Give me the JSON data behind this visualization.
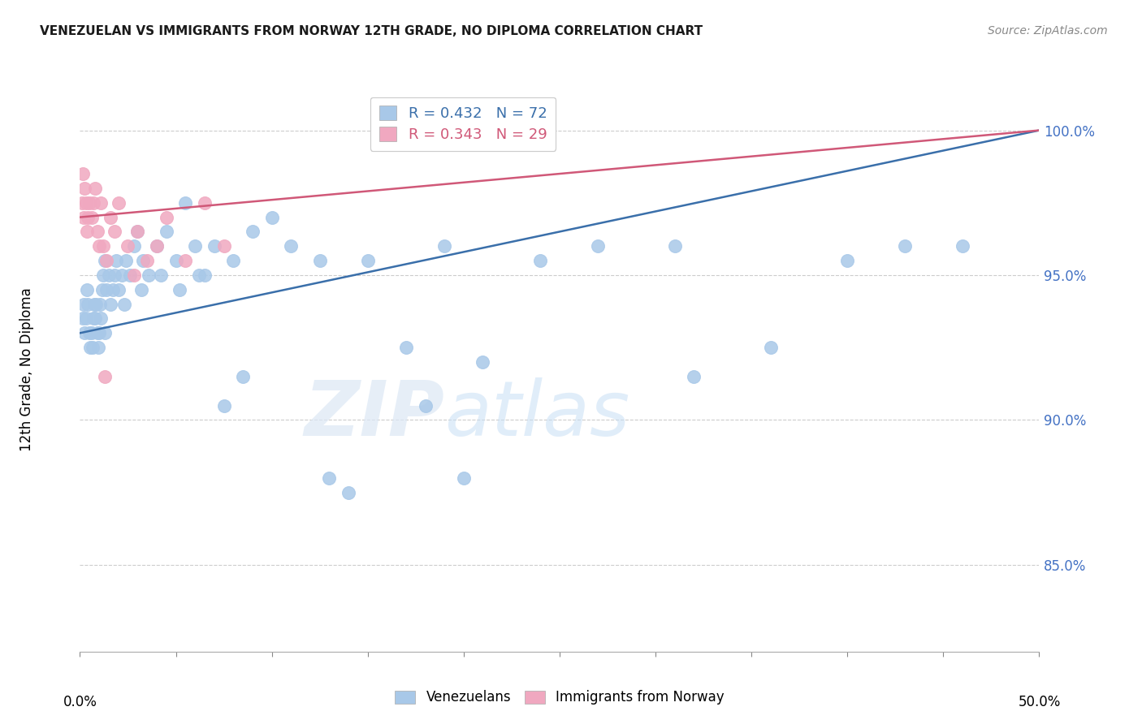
{
  "title": "VENEZUELAN VS IMMIGRANTS FROM NORWAY 12TH GRADE, NO DIPLOMA CORRELATION CHART",
  "source": "Source: ZipAtlas.com",
  "ylabel": "12th Grade, No Diploma",
  "watermark_zip": "ZIP",
  "watermark_atlas": "atlas",
  "blue_color": "#a8c8e8",
  "pink_color": "#f0a8c0",
  "blue_line_color": "#3a6faa",
  "pink_line_color": "#d05878",
  "xmin": 0.0,
  "xmax": 50.0,
  "ymin": 82.0,
  "ymax": 101.5,
  "yticks": [
    85.0,
    90.0,
    95.0,
    100.0
  ],
  "blue_trend_y0": 93.0,
  "blue_trend_y1": 100.0,
  "pink_trend_y0": 97.0,
  "pink_trend_y1": 100.0,
  "venezuelan_x": [
    0.15,
    0.2,
    0.25,
    0.3,
    0.35,
    0.4,
    0.5,
    0.55,
    0.6,
    0.65,
    0.7,
    0.75,
    0.8,
    0.85,
    0.9,
    0.95,
    1.0,
    1.05,
    1.1,
    1.15,
    1.2,
    1.3,
    1.4,
    1.5,
    1.6,
    1.7,
    1.8,
    1.9,
    2.0,
    2.2,
    2.4,
    2.6,
    2.8,
    3.0,
    3.3,
    3.6,
    4.0,
    4.5,
    5.0,
    5.5,
    6.0,
    6.5,
    7.0,
    8.0,
    9.0,
    10.0,
    11.0,
    12.5,
    14.0,
    15.0,
    17.0,
    19.0,
    21.0,
    24.0,
    27.0,
    31.0,
    36.0,
    40.0,
    43.0,
    46.0,
    32.0,
    20.0,
    18.0,
    13.0,
    8.5,
    7.5,
    6.2,
    5.2,
    4.2,
    3.2,
    2.3,
    1.3
  ],
  "venezuelan_y": [
    93.5,
    94.0,
    93.0,
    93.5,
    94.5,
    94.0,
    93.0,
    92.5,
    93.0,
    92.5,
    93.5,
    94.0,
    93.5,
    94.0,
    93.0,
    92.5,
    93.0,
    94.0,
    93.5,
    94.5,
    95.0,
    95.5,
    94.5,
    95.0,
    94.0,
    94.5,
    95.0,
    95.5,
    94.5,
    95.0,
    95.5,
    95.0,
    96.0,
    96.5,
    95.5,
    95.0,
    96.0,
    96.5,
    95.5,
    97.5,
    96.0,
    95.0,
    96.0,
    95.5,
    96.5,
    97.0,
    96.0,
    95.5,
    87.5,
    95.5,
    92.5,
    96.0,
    92.0,
    95.5,
    96.0,
    96.0,
    92.5,
    95.5,
    96.0,
    96.0,
    91.5,
    88.0,
    90.5,
    88.0,
    91.5,
    90.5,
    95.0,
    94.5,
    95.0,
    94.5,
    94.0,
    93.0
  ],
  "norway_x": [
    0.1,
    0.15,
    0.2,
    0.25,
    0.3,
    0.35,
    0.4,
    0.5,
    0.6,
    0.7,
    0.8,
    0.9,
    1.0,
    1.1,
    1.2,
    1.4,
    1.6,
    1.8,
    2.0,
    2.5,
    3.0,
    3.5,
    4.0,
    4.5,
    5.5,
    6.5,
    7.5,
    2.8,
    1.3
  ],
  "norway_y": [
    97.5,
    98.5,
    97.0,
    98.0,
    97.5,
    96.5,
    97.0,
    97.5,
    97.0,
    97.5,
    98.0,
    96.5,
    96.0,
    97.5,
    96.0,
    95.5,
    97.0,
    96.5,
    97.5,
    96.0,
    96.5,
    95.5,
    96.0,
    97.0,
    95.5,
    97.5,
    96.0,
    95.0,
    91.5
  ]
}
